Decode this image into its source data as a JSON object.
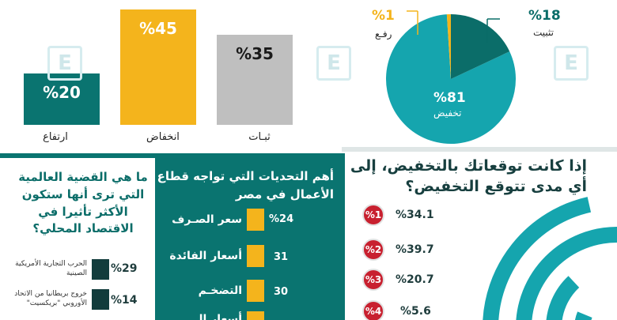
{
  "chart_data": [
    {
      "type": "bar",
      "categories": [
        "ارتفاع",
        "انخفاض",
        "ثبـات"
      ],
      "values": [
        20,
        45,
        35
      ],
      "value_labels": [
        "%20",
        "%45",
        "%35"
      ],
      "colors": [
        "#0a7470",
        "#f4b41c",
        "#bfbfbf"
      ],
      "value_colors": [
        "#ffffff",
        "#ffffff",
        "#1a1a1a"
      ],
      "ylim": [
        0,
        45
      ]
    },
    {
      "type": "pie",
      "labels": [
        "تخفيض",
        "تثبيت",
        "رفـع"
      ],
      "values": [
        81,
        18,
        1
      ],
      "value_labels": [
        "%81",
        "%18",
        "%1"
      ],
      "colors": [
        "#15a5ae",
        "#0b6d69",
        "#f4b41c"
      ]
    },
    {
      "type": "bar",
      "title": "أهم التحديات التي تواجه قطاع الأعمال في مصر",
      "categories": [
        "سعر الصـرف",
        "أسعار الفائدة",
        "التضخـم",
        "أسعار الـ..."
      ],
      "values": [
        24,
        31,
        30,
        null
      ],
      "value_labels": [
        "%24",
        "31",
        "30",
        ""
      ]
    },
    {
      "type": "bar",
      "title": "ما هي القضية العالمية التي ترى أنها ستكون الأكثر تأثيرا في الاقتصاد المحلي؟",
      "categories": [
        "الحرب التجارية الأمريكية الصينية",
        "خروج بريطانيا من الاتحاد الأوروبي \"بريكسيت\""
      ],
      "values": [
        29,
        14
      ],
      "value_labels": [
        "%29",
        "%14"
      ]
    },
    {
      "type": "bar",
      "title": "إذا كانت توقعاتك بالتخفيض، إلى أي مدى تتوقع التخفيض؟",
      "categories": [
        "%1",
        "%2",
        "%3",
        "%4"
      ],
      "values": [
        34.1,
        39.7,
        20.7,
        5.6
      ],
      "value_labels": [
        "%34.1",
        "%39.7",
        "%20.7",
        "%5.6"
      ]
    }
  ],
  "watermark": {
    "letter": "E",
    "colors": "#d6ecef"
  }
}
